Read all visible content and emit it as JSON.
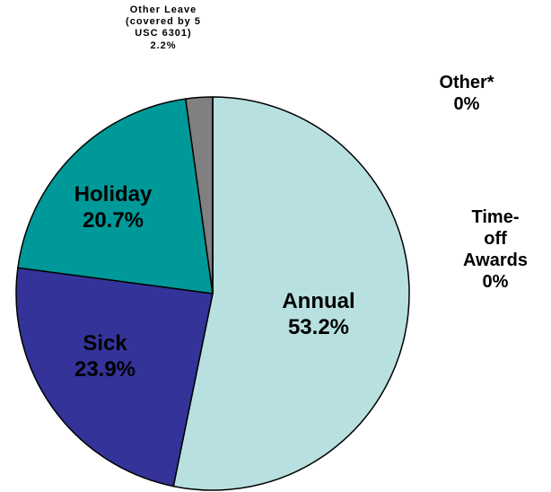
{
  "chart_data": {
    "type": "pie",
    "categories": [
      "Annual",
      "Sick",
      "Holiday",
      "Other Leave\n(covered by 5\nUSC 6301)",
      "Time-off\nAwards",
      "Other*"
    ],
    "values": [
      53.2,
      23.9,
      20.7,
      2.2,
      0,
      0
    ],
    "value_labels": [
      "53.2%",
      "23.9%",
      "20.7%",
      "2.2%",
      "0%",
      "0%"
    ],
    "colors": [
      "#b8e0e0",
      "#333399",
      "#009999",
      "#808080",
      "#ffffff",
      "#ffffff"
    ]
  }
}
